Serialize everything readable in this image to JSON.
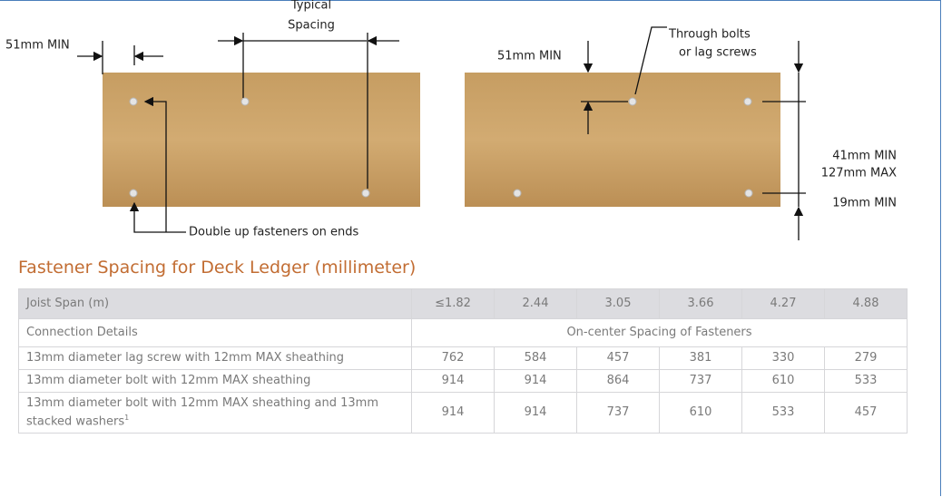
{
  "diagram": {
    "left": {
      "typical_spacing": [
        "Typical",
        "Spacing"
      ],
      "end_distance": "51mm MIN",
      "double_up_note": "Double up fasteners on ends"
    },
    "right": {
      "top_distance": "51mm MIN",
      "fastener_note": [
        "Through bolts",
        "or lag screws"
      ],
      "vertical_range": [
        "41mm MIN",
        "127mm MAX"
      ],
      "bottom_distance": "19mm MIN"
    }
  },
  "title": "Fastener Spacing for Deck Ledger (millimeter)",
  "table": {
    "header": [
      "Joist Span (m)",
      "≤1.82",
      "2.44",
      "3.05",
      "3.66",
      "4.27",
      "4.88"
    ],
    "subheader": [
      "Connection Details",
      "On-center Spacing of Fasteners"
    ],
    "rows": [
      {
        "label": "13mm diameter lag screw with 12mm MAX sheathing",
        "values": [
          762,
          584,
          457,
          381,
          330,
          279
        ]
      },
      {
        "label": "13mm diameter bolt with 12mm MAX sheathing",
        "values": [
          914,
          914,
          864,
          737,
          610,
          533
        ]
      },
      {
        "label": "13mm diameter bolt with 12mm MAX sheathing and 13mm stacked washers",
        "footnote": "1",
        "values": [
          914,
          914,
          737,
          610,
          533,
          457
        ]
      }
    ]
  }
}
